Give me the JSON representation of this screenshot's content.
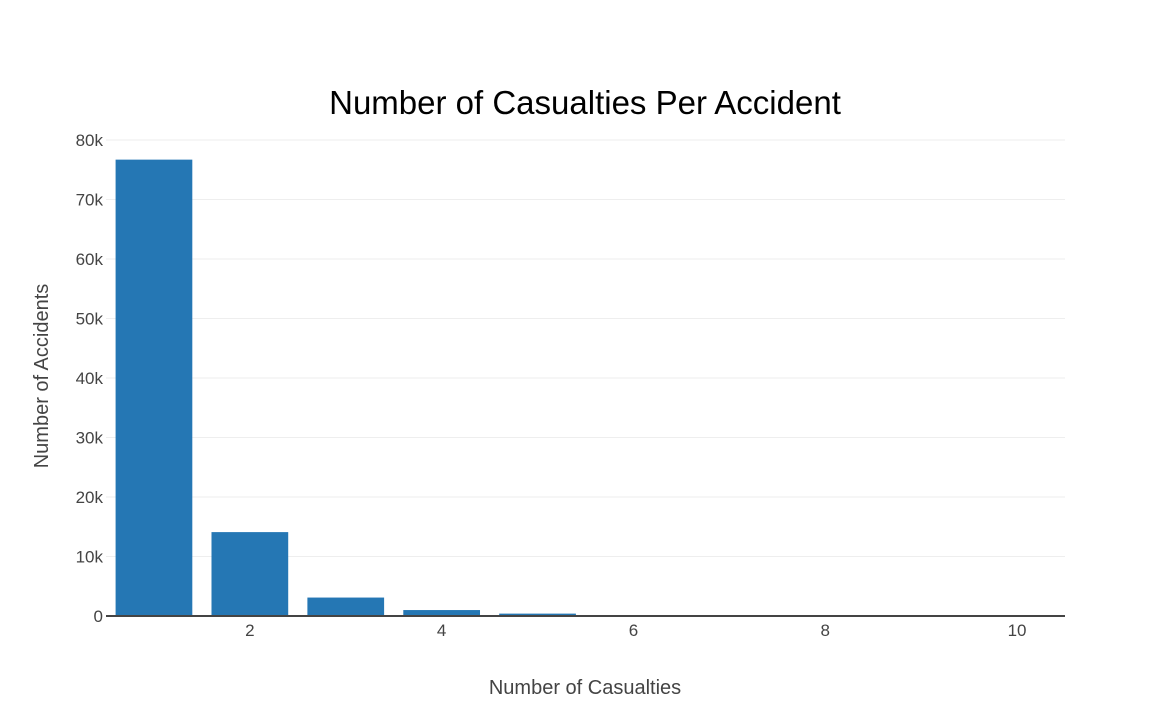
{
  "chart_data": {
    "type": "bar",
    "title": "Number of Casualties Per Accident",
    "xlabel": "Number of Casualties",
    "ylabel": "Number of Accidents",
    "x": [
      1,
      2,
      3,
      4,
      5,
      6,
      7,
      8,
      9,
      10
    ],
    "values": [
      76700,
      14100,
      3100,
      1000,
      400,
      150,
      80,
      50,
      30,
      20
    ],
    "xlim": [
      0.5,
      10.5
    ],
    "ylim": [
      0,
      80000
    ],
    "x_ticks": [
      2,
      4,
      6,
      8,
      10
    ],
    "x_tick_labels": [
      "2",
      "4",
      "6",
      "8",
      "10"
    ],
    "y_ticks": [
      0,
      10000,
      20000,
      30000,
      40000,
      50000,
      60000,
      70000,
      80000
    ],
    "y_tick_labels": [
      "0",
      "10k",
      "20k",
      "30k",
      "40k",
      "50k",
      "60k",
      "70k",
      "80k"
    ],
    "grid": true,
    "legend": "none",
    "bar_color": "#2577b4"
  }
}
